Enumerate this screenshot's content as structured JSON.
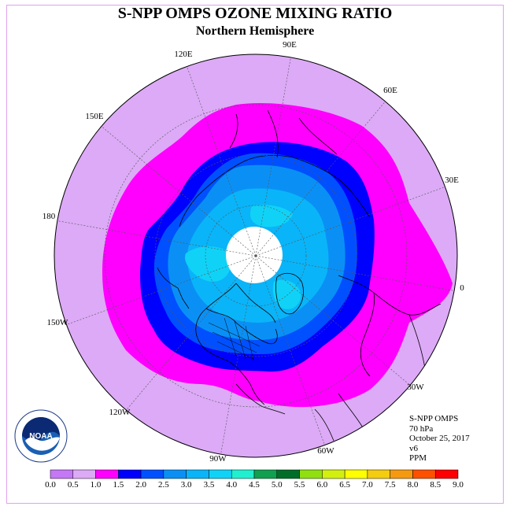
{
  "title": "S-NPP OMPS OZONE MIXING RATIO",
  "subtitle": "Northern Hemisphere",
  "longitude_labels": [
    "90E",
    "60E",
    "30E",
    "0",
    "30W",
    "60W",
    "90W",
    "120W",
    "150W",
    "180",
    "150E",
    "120E"
  ],
  "info": {
    "instrument": "S-NPP OMPS",
    "pressure": "70 hPa",
    "date": "October 25, 2017",
    "version": "v6",
    "unit": "PPM"
  },
  "logo": {
    "name": "NOAA",
    "ring_text": "NATIONAL OCEANIC AND ATMOSPHERIC ADMINISTRATION · U.S. DEPARTMENT OF COMMERCE"
  },
  "colorbar": {
    "ticks": [
      "0.0",
      "0.5",
      "1.0",
      "1.5",
      "2.0",
      "2.5",
      "3.0",
      "3.5",
      "4.0",
      "4.5",
      "5.0",
      "5.5",
      "6.0",
      "6.5",
      "7.0",
      "7.5",
      "8.0",
      "8.5",
      "9.0"
    ],
    "colors": [
      "#c478f5",
      "#dcaaf6",
      "#ff00ff",
      "#0000ff",
      "#0050ff",
      "#0a90f5",
      "#0ab4f8",
      "#10d2f7",
      "#20f0d0",
      "#10a050",
      "#006e28",
      "#90e010",
      "#d2f010",
      "#ffff00",
      "#f4cc10",
      "#f59a10",
      "#ff5000",
      "#ff0000",
      "#8b5a3a"
    ]
  },
  "field": {
    "background_color": "#dcaaf6",
    "levels": [
      {
        "range": "1.0-1.5",
        "color": "#ff00ff"
      },
      {
        "range": "1.5-2.0",
        "color": "#0000ff"
      },
      {
        "range": "2.0-2.5",
        "color": "#0050ff"
      },
      {
        "range": "2.5-3.0",
        "color": "#0a90f5"
      },
      {
        "range": "3.0-3.5",
        "color": "#0ab4f8"
      },
      {
        "range": "3.5-4.0",
        "color": "#10d2f7"
      }
    ],
    "no_data_color": "#ffffff"
  }
}
